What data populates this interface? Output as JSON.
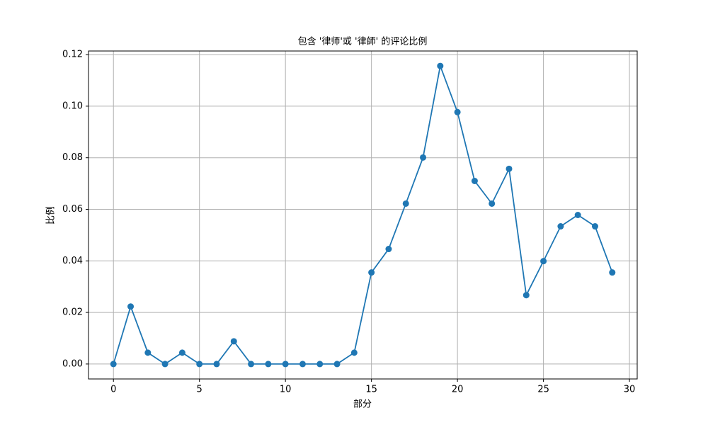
{
  "chart_data": {
    "type": "line",
    "title": "包含 '律师'或 '律師' 的评论比例",
    "x_label": "部分",
    "y_label": "比例",
    "x": [
      0,
      1,
      2,
      3,
      4,
      5,
      6,
      7,
      8,
      9,
      10,
      11,
      12,
      13,
      14,
      15,
      16,
      17,
      18,
      19,
      20,
      21,
      22,
      23,
      24,
      25,
      26,
      27,
      28,
      29
    ],
    "series": [
      {
        "name": "比例",
        "color": "#1f77b4",
        "values": [
          0,
          0.0223,
          0.0044,
          0,
          0.0044,
          0,
          0,
          0.0088,
          0,
          0,
          0,
          0,
          0,
          0,
          0.0044,
          0.0355,
          0.0446,
          0.0622,
          0.0801,
          0.1156,
          0.0977,
          0.071,
          0.0622,
          0.0757,
          0.0267,
          0.0399,
          0.0534,
          0.0578,
          0.0534,
          0.0355
        ]
      }
    ],
    "xlim": [
      -1.45,
      30.45
    ],
    "ylim": [
      -0.0058,
      0.1214
    ],
    "xticks": [
      0,
      5,
      10,
      15,
      20,
      25,
      30
    ],
    "yticks": [
      {
        "value": 0,
        "label": "0.00"
      },
      {
        "value": 0.02,
        "label": "0.02"
      },
      {
        "value": 0.04,
        "label": "0.04"
      },
      {
        "value": 0.06,
        "label": "0.06"
      },
      {
        "value": 0.08,
        "label": "0.08"
      },
      {
        "value": 0.1,
        "label": "0.10"
      },
      {
        "value": 0.12,
        "label": "0.12"
      }
    ],
    "grid": true
  }
}
